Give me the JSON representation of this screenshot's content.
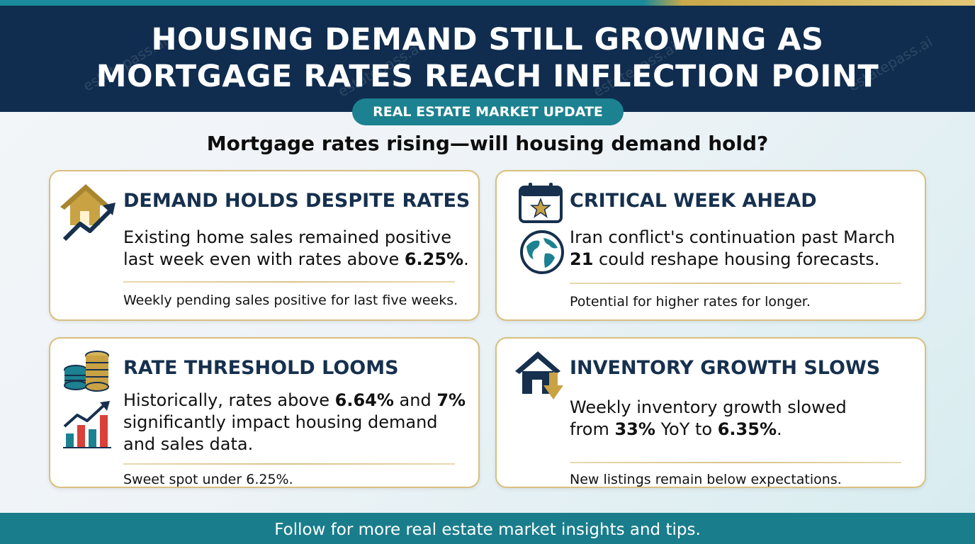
{
  "header": {
    "title_line1": "HOUSING DEMAND STILL GROWING AS",
    "title_line2": "MORTGAGE RATES REACH INFLECTION POINT",
    "watermark": "estatepass.ai"
  },
  "tag": "REAL ESTATE MARKET UPDATE",
  "subtitle": "Mortgage rates rising—will housing demand hold?",
  "cards": [
    {
      "title": "DEMAND HOLDS DESPITE RATES",
      "body_a": "Existing home sales remained positive last week even with rates above ",
      "body_b": "6.25%",
      "body_c": ".",
      "footnote": "Weekly pending sales positive for last five weeks.",
      "icon": "house-growth-arrow-icon"
    },
    {
      "title": "CRITICAL WEEK AHEAD",
      "body_a": "Iran conflict's continuation past March ",
      "body_b": "21",
      "body_c": " could reshape housing forecasts.",
      "footnote": "Potential for higher rates for longer.",
      "icons": [
        "calendar-star-icon",
        "globe-icon"
      ]
    },
    {
      "title": "RATE THRESHOLD LOOMS",
      "body_a": "Historically, rates above ",
      "body_b": "6.64%",
      "body_c": " and ",
      "body_d": "7%",
      "body_e": " significantly impact housing demand and sales data.",
      "footnote": "Sweet spot under 6.25%.",
      "icons": [
        "coin-stacks-icon",
        "bar-chart-growth-icon"
      ]
    },
    {
      "title": "INVENTORY GROWTH SLOWS",
      "body_a": "Weekly inventory growth slowed from ",
      "body_b": "33%",
      "body_c": " YoY to ",
      "body_d": "6.35%",
      "body_e": ".",
      "footnote": "New listings remain below expectations.",
      "icon": "house-down-arrow-icon"
    }
  ],
  "footer": "Follow for more real estate market insights and tips.",
  "colors": {
    "navy": "#102d4f",
    "teal": "#1c8190",
    "gold": "#d9bf7f",
    "card_title": "#16304e"
  }
}
